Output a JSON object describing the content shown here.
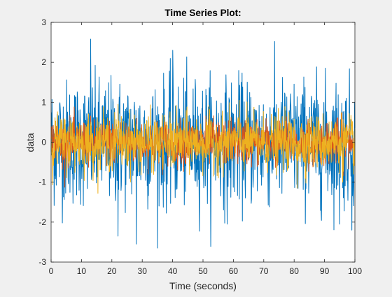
{
  "figure": {
    "background": "#f0f0f0"
  },
  "chart_data": {
    "type": "line",
    "title": "Time Series Plot:",
    "xlabel": "Time (seconds)",
    "ylabel": "data",
    "xlim": [
      0,
      100
    ],
    "ylim": [
      -3,
      3
    ],
    "xticks": [
      0,
      10,
      20,
      30,
      40,
      50,
      60,
      70,
      80,
      90,
      100
    ],
    "yticks": [
      -3,
      -2,
      -1,
      0,
      1,
      2,
      3
    ],
    "grid": false,
    "samples_per_series": 1000,
    "series": [
      {
        "color": "#0072bd",
        "std": 0.77,
        "peaks": [
          [
            13,
            2.58
          ],
          [
            40,
            2.3
          ],
          [
            22,
            -2.35
          ],
          [
            28,
            -2.55
          ],
          [
            58,
            -2.05
          ],
          [
            95,
            -2.05
          ],
          [
            99,
            -2.2
          ]
        ]
      },
      {
        "color": "#d95319",
        "std": 0.28,
        "peaks": []
      },
      {
        "color": "#edb120",
        "std": 0.34,
        "peaks": [
          [
            22,
            0.95
          ],
          [
            62,
            1.05
          ],
          [
            81,
            -1.15
          ],
          [
            96,
            -1.0
          ]
        ]
      }
    ]
  }
}
